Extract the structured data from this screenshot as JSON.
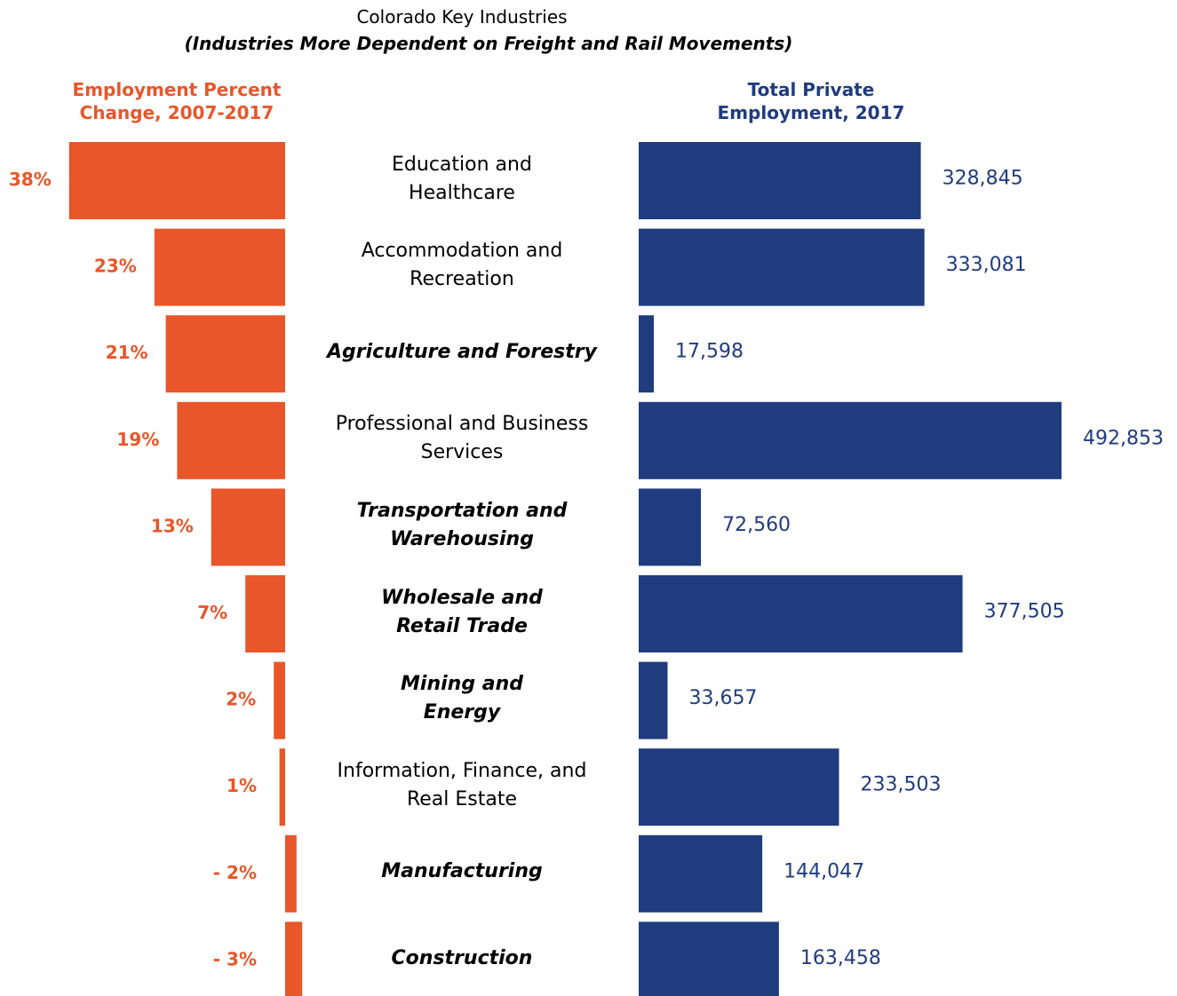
{
  "chart_data": {
    "type": "bar",
    "title": "Colorado Key Industries",
    "subtitle": "(Industries More Dependent on Freight and Rail Movements)",
    "categories": [
      "Education and\nHealthcare",
      "Accommodation and\nRecreation",
      "Agriculture and Forestry",
      "Professional and Business\nServices",
      "Transportation and\nWarehousing",
      "Wholesale and\nRetail Trade",
      "Mining and\nEnergy",
      "Information, Finance, and\nReal Estate",
      "Manufacturing",
      "Construction"
    ],
    "highlight": [
      false,
      false,
      true,
      false,
      true,
      true,
      true,
      false,
      true,
      true
    ],
    "series": [
      {
        "name": "Employment Percent Change, 2007-2017",
        "color": "#e8562a",
        "values": [
          38,
          23,
          21,
          19,
          13,
          7,
          2,
          1,
          -2,
          -3
        ],
        "value_labels": [
          "38%",
          "23%",
          "21%",
          "19%",
          "13%",
          "7%",
          "2%",
          "1%",
          "- 2%",
          "- 3%"
        ]
      },
      {
        "name": "Total Private Employment, 2017",
        "color": "#1f3c7e",
        "values": [
          328845,
          333081,
          17598,
          492853,
          72560,
          377505,
          33657,
          233503,
          144047,
          163458
        ],
        "value_labels": [
          "328,845",
          "333,081",
          "17,598",
          "492,853",
          "72,560",
          "377,505",
          "33,657",
          "233,503",
          "144,047",
          "163,458"
        ]
      }
    ]
  }
}
